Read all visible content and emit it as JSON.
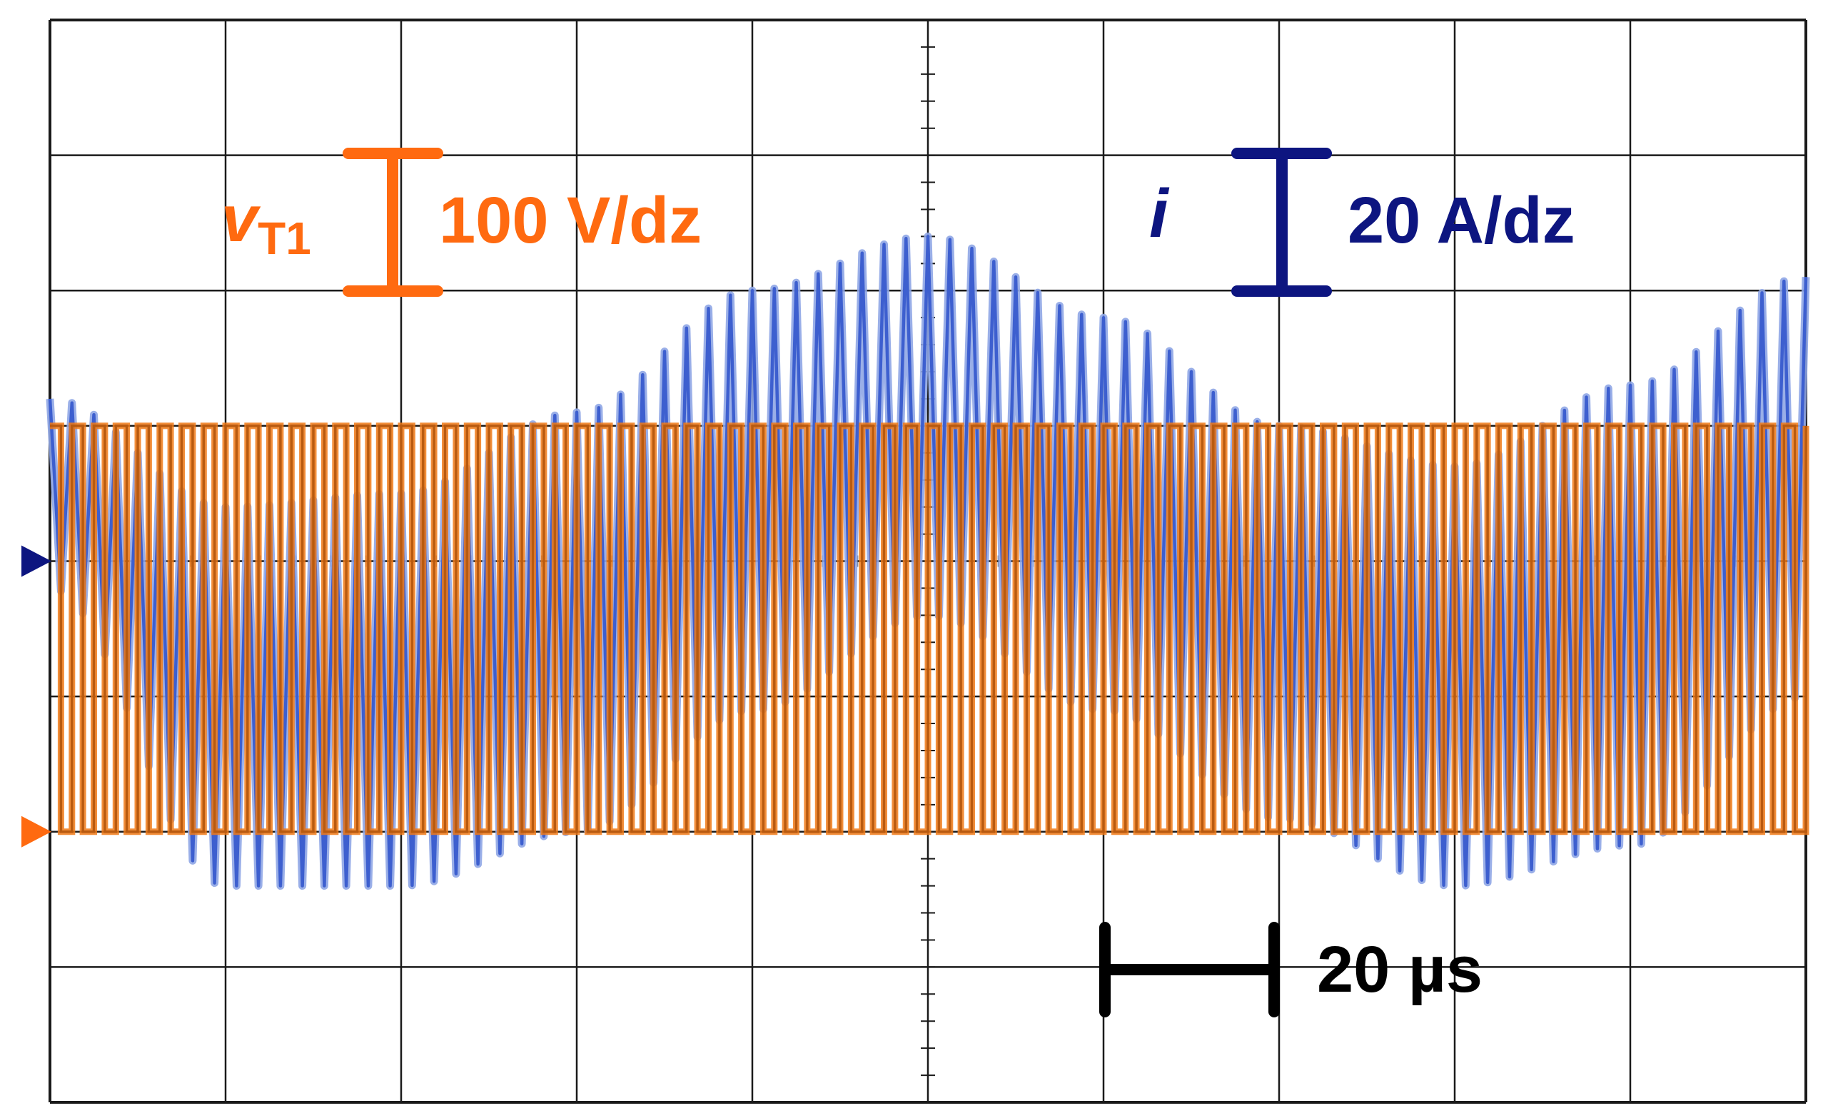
{
  "colors": {
    "voltage": "#ff6a10",
    "voltage_trace": "#f07a18",
    "voltage_trace_dark": "#b85a10",
    "current": "#0d1580",
    "current_trace": "#3d5fcf",
    "current_trace_light": "#8fa6e6",
    "scale_bar": "#000000",
    "grid": "#1a1a1a",
    "background": "#ffffff"
  },
  "labels": {
    "voltage_symbol": "v",
    "voltage_subscript": "T1",
    "voltage_scale": "100 V/dz",
    "current_symbol": "i",
    "current_scale": "20 A/dz",
    "time_scale": "20 µs"
  },
  "chart_data": {
    "type": "line",
    "instrument": "oscilloscope",
    "grid": true,
    "divisions": {
      "horizontal": 10,
      "vertical": 8
    },
    "time_per_division_us": 20,
    "x_range_us": [
      -100,
      100
    ],
    "series": [
      {
        "name": "vT1",
        "unit": "V",
        "scale_per_division": 100,
        "waveform": "square",
        "ground_marker_division_from_top": 6,
        "low_level_V": 0,
        "high_level_V": 300,
        "switching_period_us": 2.5
      },
      {
        "name": "i",
        "unit": "A",
        "scale_per_division": 20,
        "waveform": "triangular ripple with sinusoidal envelope",
        "ground_marker_division_from_top": 4,
        "ripple_period_us": 2.5,
        "envelope_x_us": [
          -100,
          -80,
          -60,
          -40,
          -20,
          0,
          20,
          40,
          60,
          80,
          100
        ],
        "envelope_max_A": [
          24,
          8,
          10,
          22,
          40,
          48,
          36,
          20,
          14,
          26,
          42
        ],
        "envelope_min_A": [
          -4,
          -48,
          -48,
          -40,
          -22,
          -8,
          -22,
          -38,
          -48,
          -42,
          -20
        ]
      }
    ]
  }
}
